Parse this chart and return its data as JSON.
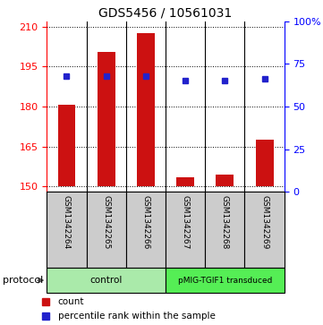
{
  "title": "GDS5456 / 10561031",
  "samples": [
    "GSM1342264",
    "GSM1342265",
    "GSM1342266",
    "GSM1342267",
    "GSM1342268",
    "GSM1342269"
  ],
  "bar_values": [
    180.5,
    200.5,
    207.5,
    153.5,
    154.5,
    167.5
  ],
  "bar_base": 150,
  "percentile_values": [
    68,
    68,
    68,
    65,
    65,
    66
  ],
  "ylim_left": [
    148,
    212
  ],
  "ylim_right": [
    0,
    100
  ],
  "yticks_left": [
    150,
    165,
    180,
    195,
    210
  ],
  "yticks_right": [
    0,
    25,
    50,
    75,
    100
  ],
  "ytick_labels_right": [
    "0",
    "25",
    "50",
    "75",
    "100%"
  ],
  "bar_color": "#cc1111",
  "marker_color": "#2222cc",
  "protocol_groups": [
    {
      "label": "control",
      "samples_idx": [
        0,
        1,
        2
      ],
      "color": "#aaeaaa"
    },
    {
      "label": "pMIG-TGIF1 transduced",
      "samples_idx": [
        3,
        4,
        5
      ],
      "color": "#55ee55"
    }
  ],
  "protocol_label": "protocol",
  "legend_items": [
    {
      "label": "count",
      "color": "#cc1111"
    },
    {
      "label": "percentile rank within the sample",
      "color": "#2222cc"
    }
  ],
  "label_bg_color": "#cccccc",
  "figsize": [
    3.61,
    3.63
  ],
  "dpi": 100
}
